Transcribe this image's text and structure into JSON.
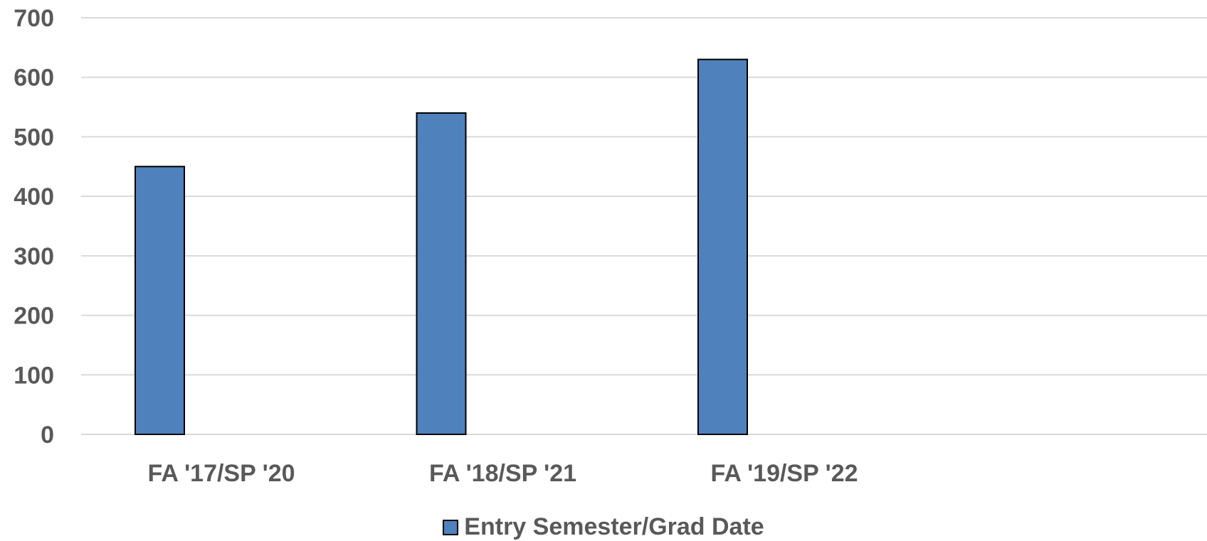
{
  "chart_data": {
    "type": "bar",
    "categories": [
      "FA '17/SP '20",
      "FA '18/SP '21",
      "FA '19/SP '22",
      ""
    ],
    "series": [
      {
        "name": "Entry Semester/Grad Date",
        "values": [
          450,
          540,
          630,
          null
        ],
        "color": "#4f81bd"
      }
    ],
    "title": "",
    "xlabel": "",
    "ylabel": "",
    "ylim": [
      0,
      700
    ],
    "yticks": [
      0,
      100,
      200,
      300,
      400,
      500,
      600,
      700
    ],
    "grid": true,
    "legend": "bottom-center"
  }
}
